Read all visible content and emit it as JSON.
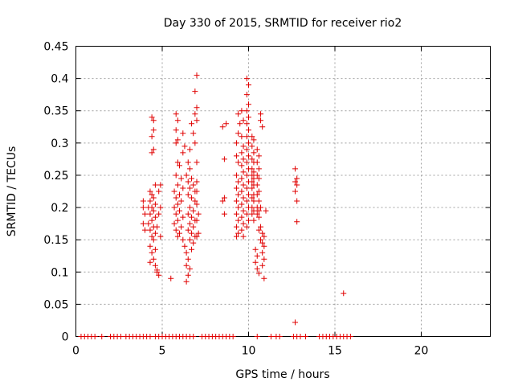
{
  "chart_data": {
    "type": "scatter",
    "title": "Day 330 of 2015, SRMTID for receiver rio2",
    "xlabel": "GPS time / hours",
    "ylabel": "SRMTID / TECUs",
    "xlim": [
      0,
      24
    ],
    "ylim": [
      0,
      0.45
    ],
    "xticks": [
      "0",
      "5",
      "10",
      "15",
      "20"
    ],
    "yticks": [
      "0",
      "0.05",
      "0.1",
      "0.15",
      "0.2",
      "0.25",
      "0.3",
      "0.35",
      "0.4",
      "0.45"
    ],
    "grid": true,
    "marker": "plus",
    "color": "#e00000",
    "series": [
      {
        "points": [
          [
            0.3,
            0
          ],
          [
            0.5,
            0
          ],
          [
            0.7,
            0
          ],
          [
            0.9,
            0
          ],
          [
            1.1,
            0
          ],
          [
            1.5,
            0
          ],
          [
            2.0,
            0
          ],
          [
            2.2,
            0
          ],
          [
            2.4,
            0
          ],
          [
            2.6,
            0
          ],
          [
            2.9,
            0
          ],
          [
            3.1,
            0
          ],
          [
            3.3,
            0
          ],
          [
            3.5,
            0
          ],
          [
            3.7,
            0
          ],
          [
            3.9,
            0
          ],
          [
            4.1,
            0
          ],
          [
            4.3,
            0
          ],
          [
            4.6,
            0
          ],
          [
            4.8,
            0
          ],
          [
            5.0,
            0
          ],
          [
            5.2,
            0
          ],
          [
            5.4,
            0
          ],
          [
            5.6,
            0
          ],
          [
            5.8,
            0
          ],
          [
            6.0,
            0
          ],
          [
            6.2,
            0
          ],
          [
            6.4,
            0
          ],
          [
            6.6,
            0
          ],
          [
            6.8,
            0
          ],
          [
            7.3,
            0
          ],
          [
            7.5,
            0
          ],
          [
            7.7,
            0
          ],
          [
            7.9,
            0
          ],
          [
            8.1,
            0
          ],
          [
            8.3,
            0
          ],
          [
            8.5,
            0
          ],
          [
            8.7,
            0
          ],
          [
            8.9,
            0
          ],
          [
            9.1,
            0
          ],
          [
            10.5,
            0
          ],
          [
            11.3,
            0
          ],
          [
            11.6,
            0
          ],
          [
            11.8,
            0
          ],
          [
            12.6,
            0
          ],
          [
            12.8,
            0
          ],
          [
            13.0,
            0
          ],
          [
            13.3,
            0
          ],
          [
            14.1,
            0
          ],
          [
            14.3,
            0
          ],
          [
            14.5,
            0
          ],
          [
            14.7,
            0
          ],
          [
            14.9,
            0
          ],
          [
            15.1,
            0
          ],
          [
            15.3,
            0
          ],
          [
            15.5,
            0
          ],
          [
            15.7,
            0
          ],
          [
            15.9,
            0
          ],
          [
            12.7,
            0.022
          ],
          [
            15.5,
            0.067
          ],
          [
            5.5,
            0.09
          ],
          [
            4.4,
            0.34
          ],
          [
            4.5,
            0.335
          ],
          [
            4.5,
            0.32
          ],
          [
            4.4,
            0.31
          ],
          [
            4.5,
            0.29
          ],
          [
            4.4,
            0.285
          ],
          [
            4.6,
            0.235
          ],
          [
            4.3,
            0.225
          ],
          [
            4.4,
            0.22
          ],
          [
            4.5,
            0.215
          ],
          [
            4.3,
            0.21
          ],
          [
            4.6,
            0.205
          ],
          [
            4.4,
            0.2
          ],
          [
            4.2,
            0.2
          ],
          [
            4.5,
            0.195
          ],
          [
            4.3,
            0.19
          ],
          [
            4.6,
            0.185
          ],
          [
            4.4,
            0.18
          ],
          [
            4.2,
            0.175
          ],
          [
            4.5,
            0.17
          ],
          [
            4.3,
            0.165
          ],
          [
            4.6,
            0.16
          ],
          [
            4.4,
            0.155
          ],
          [
            4.5,
            0.15
          ],
          [
            4.3,
            0.14
          ],
          [
            4.6,
            0.135
          ],
          [
            4.4,
            0.13
          ],
          [
            4.5,
            0.12
          ],
          [
            4.3,
            0.115
          ],
          [
            4.6,
            0.11
          ],
          [
            4.7,
            0.103
          ],
          [
            4.8,
            0.095
          ],
          [
            4.7,
            0.1
          ],
          [
            4.9,
            0.235
          ],
          [
            4.8,
            0.225
          ],
          [
            4.9,
            0.2
          ],
          [
            4.8,
            0.19
          ],
          [
            4.7,
            0.17
          ],
          [
            4.9,
            0.155
          ],
          [
            3.9,
            0.2
          ],
          [
            3.9,
            0.175
          ],
          [
            4.0,
            0.165
          ],
          [
            4.0,
            0.19
          ],
          [
            3.9,
            0.21
          ],
          [
            5.8,
            0.345
          ],
          [
            5.9,
            0.335
          ],
          [
            5.8,
            0.32
          ],
          [
            5.9,
            0.305
          ],
          [
            5.8,
            0.3
          ],
          [
            6.2,
            0.315
          ],
          [
            6.3,
            0.295
          ],
          [
            6.2,
            0.285
          ],
          [
            5.9,
            0.27
          ],
          [
            6.0,
            0.265
          ],
          [
            5.8,
            0.25
          ],
          [
            6.1,
            0.245
          ],
          [
            5.9,
            0.235
          ],
          [
            6.2,
            0.23
          ],
          [
            5.7,
            0.225
          ],
          [
            6.0,
            0.22
          ],
          [
            5.8,
            0.215
          ],
          [
            6.1,
            0.21
          ],
          [
            5.9,
            0.205
          ],
          [
            5.7,
            0.2
          ],
          [
            6.0,
            0.195
          ],
          [
            5.8,
            0.19
          ],
          [
            6.2,
            0.185
          ],
          [
            5.9,
            0.18
          ],
          [
            5.7,
            0.175
          ],
          [
            6.1,
            0.17
          ],
          [
            5.8,
            0.165
          ],
          [
            6.0,
            0.16
          ],
          [
            5.9,
            0.155
          ],
          [
            6.2,
            0.15
          ],
          [
            6.3,
            0.14
          ],
          [
            6.4,
            0.13
          ],
          [
            6.5,
            0.12
          ],
          [
            6.4,
            0.11
          ],
          [
            6.5,
            0.095
          ],
          [
            6.4,
            0.085
          ],
          [
            6.6,
            0.105
          ],
          [
            6.7,
            0.135
          ],
          [
            6.5,
            0.27
          ],
          [
            6.6,
            0.26
          ],
          [
            6.4,
            0.25
          ],
          [
            6.7,
            0.245
          ],
          [
            6.5,
            0.24
          ],
          [
            6.8,
            0.235
          ],
          [
            6.6,
            0.23
          ],
          [
            6.9,
            0.225
          ],
          [
            6.5,
            0.22
          ],
          [
            6.7,
            0.215
          ],
          [
            6.9,
            0.21
          ],
          [
            6.6,
            0.2
          ],
          [
            6.8,
            0.195
          ],
          [
            6.5,
            0.19
          ],
          [
            6.7,
            0.185
          ],
          [
            6.9,
            0.18
          ],
          [
            6.6,
            0.175
          ],
          [
            6.8,
            0.17
          ],
          [
            6.5,
            0.165
          ],
          [
            6.7,
            0.16
          ],
          [
            6.9,
            0.155
          ],
          [
            6.6,
            0.15
          ],
          [
            6.8,
            0.145
          ],
          [
            6.7,
            0.33
          ],
          [
            6.8,
            0.315
          ],
          [
            6.9,
            0.3
          ],
          [
            6.6,
            0.29
          ],
          [
            7.0,
            0.405
          ],
          [
            6.9,
            0.38
          ],
          [
            7.0,
            0.355
          ],
          [
            6.9,
            0.345
          ],
          [
            7.0,
            0.335
          ],
          [
            7.0,
            0.27
          ],
          [
            7.0,
            0.24
          ],
          [
            7.0,
            0.225
          ],
          [
            7.0,
            0.205
          ],
          [
            7.1,
            0.19
          ],
          [
            7.0,
            0.18
          ],
          [
            7.1,
            0.16
          ],
          [
            7.0,
            0.155
          ],
          [
            8.5,
            0.325
          ],
          [
            8.6,
            0.275
          ],
          [
            8.6,
            0.215
          ],
          [
            8.5,
            0.21
          ],
          [
            8.6,
            0.19
          ],
          [
            8.7,
            0.33
          ],
          [
            9.3,
            0.3
          ],
          [
            9.4,
            0.315
          ],
          [
            9.3,
            0.28
          ],
          [
            9.4,
            0.27
          ],
          [
            9.3,
            0.25
          ],
          [
            9.4,
            0.24
          ],
          [
            9.3,
            0.23
          ],
          [
            9.4,
            0.22
          ],
          [
            9.3,
            0.21
          ],
          [
            9.4,
            0.2
          ],
          [
            9.3,
            0.19
          ],
          [
            9.4,
            0.18
          ],
          [
            9.3,
            0.17
          ],
          [
            9.4,
            0.16
          ],
          [
            9.3,
            0.155
          ],
          [
            9.6,
            0.31
          ],
          [
            9.7,
            0.295
          ],
          [
            9.6,
            0.285
          ],
          [
            9.7,
            0.275
          ],
          [
            9.6,
            0.265
          ],
          [
            9.7,
            0.255
          ],
          [
            9.6,
            0.245
          ],
          [
            9.7,
            0.235
          ],
          [
            9.6,
            0.225
          ],
          [
            9.7,
            0.215
          ],
          [
            9.6,
            0.205
          ],
          [
            9.7,
            0.195
          ],
          [
            9.6,
            0.185
          ],
          [
            9.7,
            0.175
          ],
          [
            9.6,
            0.165
          ],
          [
            9.7,
            0.155
          ],
          [
            9.5,
            0.33
          ],
          [
            9.4,
            0.345
          ],
          [
            9.6,
            0.35
          ],
          [
            9.7,
            0.335
          ],
          [
            9.9,
            0.4
          ],
          [
            10.0,
            0.39
          ],
          [
            9.9,
            0.375
          ],
          [
            10.0,
            0.36
          ],
          [
            9.9,
            0.35
          ],
          [
            10.0,
            0.34
          ],
          [
            9.9,
            0.33
          ],
          [
            10.0,
            0.32
          ],
          [
            9.9,
            0.31
          ],
          [
            10.0,
            0.3
          ],
          [
            9.9,
            0.29
          ],
          [
            10.0,
            0.28
          ],
          [
            9.9,
            0.27
          ],
          [
            10.0,
            0.26
          ],
          [
            9.9,
            0.25
          ],
          [
            10.0,
            0.24
          ],
          [
            9.9,
            0.23
          ],
          [
            10.0,
            0.22
          ],
          [
            9.9,
            0.21
          ],
          [
            10.0,
            0.2
          ],
          [
            9.9,
            0.19
          ],
          [
            10.0,
            0.18
          ],
          [
            9.9,
            0.17
          ],
          [
            10.2,
            0.31
          ],
          [
            10.3,
            0.305
          ],
          [
            10.2,
            0.295
          ],
          [
            10.3,
            0.285
          ],
          [
            10.2,
            0.275
          ],
          [
            10.3,
            0.27
          ],
          [
            10.2,
            0.26
          ],
          [
            10.3,
            0.255
          ],
          [
            10.2,
            0.25
          ],
          [
            10.3,
            0.245
          ],
          [
            10.2,
            0.24
          ],
          [
            10.3,
            0.235
          ],
          [
            10.2,
            0.23
          ],
          [
            10.3,
            0.22
          ],
          [
            10.2,
            0.215
          ],
          [
            10.3,
            0.21
          ],
          [
            10.2,
            0.2
          ],
          [
            10.3,
            0.195
          ],
          [
            10.2,
            0.19
          ],
          [
            10.3,
            0.18
          ],
          [
            10.5,
            0.29
          ],
          [
            10.6,
            0.28
          ],
          [
            10.5,
            0.27
          ],
          [
            10.6,
            0.26
          ],
          [
            10.5,
            0.25
          ],
          [
            10.6,
            0.245
          ],
          [
            10.5,
            0.235
          ],
          [
            10.6,
            0.225
          ],
          [
            10.5,
            0.22
          ],
          [
            10.6,
            0.21
          ],
          [
            10.5,
            0.2
          ],
          [
            10.6,
            0.195
          ],
          [
            10.5,
            0.19
          ],
          [
            10.6,
            0.185
          ],
          [
            10.7,
            0.345
          ],
          [
            10.7,
            0.335
          ],
          [
            10.8,
            0.325
          ],
          [
            10.4,
            0.135
          ],
          [
            10.5,
            0.125
          ],
          [
            10.4,
            0.115
          ],
          [
            10.5,
            0.105
          ],
          [
            10.6,
            0.098
          ],
          [
            10.7,
            0.15
          ],
          [
            10.8,
            0.145
          ],
          [
            10.9,
            0.14
          ],
          [
            10.8,
            0.13
          ],
          [
            10.9,
            0.12
          ],
          [
            10.8,
            0.11
          ],
          [
            10.9,
            0.09
          ],
          [
            10.7,
            0.17
          ],
          [
            10.8,
            0.16
          ],
          [
            10.9,
            0.155
          ],
          [
            10.7,
            0.2
          ],
          [
            11.0,
            0.195
          ],
          [
            10.6,
            0.165
          ],
          [
            12.7,
            0.26
          ],
          [
            12.8,
            0.245
          ],
          [
            12.7,
            0.24
          ],
          [
            12.8,
            0.235
          ],
          [
            12.7,
            0.225
          ],
          [
            12.8,
            0.21
          ],
          [
            12.8,
            0.178
          ]
        ]
      }
    ]
  }
}
